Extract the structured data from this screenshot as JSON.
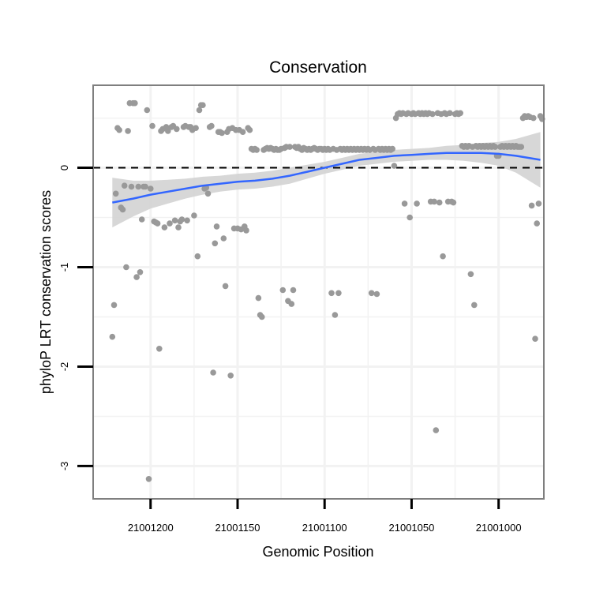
{
  "chart_data": {
    "type": "scatter",
    "title": "Conservation",
    "xlabel": "Genomic Position",
    "ylabel": "phyloP LRT conservation scores",
    "x_reversed": true,
    "xlim": [
      21000974,
      21001233
    ],
    "ylim": [
      -3.33,
      0.83
    ],
    "x_ticks": [
      21001200,
      21001150,
      21001100,
      21001050,
      21001000
    ],
    "x_tick_labels": [
      "21001200",
      "21001150",
      "21001100",
      "21001050",
      "21001000"
    ],
    "x_minor_gridlines": [
      21001175,
      21001125,
      21001075,
      21001025
    ],
    "y_ticks": [
      0,
      -1,
      -2,
      -3
    ],
    "y_tick_labels": [
      "0",
      "-1",
      "-2",
      "-3"
    ],
    "y_minor_gridlines": [
      0.5,
      -0.5,
      -1.5,
      -2.5
    ],
    "reference_line": {
      "y": 0,
      "style": "dashed"
    },
    "colors": {
      "points": "#999999",
      "smooth_line": "#3366ff",
      "confidence_band": "#d3d3d3",
      "panel_border": "#7f7f7f",
      "grid": "#f2f2f2"
    },
    "points": [
      [
        21001222,
        -1.7
      ],
      [
        21001221,
        -1.38
      ],
      [
        21001220,
        -0.26
      ],
      [
        21001219,
        0.4
      ],
      [
        21001218,
        0.38
      ],
      [
        21001217,
        -0.4
      ],
      [
        21001216,
        -0.42
      ],
      [
        21001215,
        -0.18
      ],
      [
        21001214,
        -1.0
      ],
      [
        21001213,
        0.37
      ],
      [
        21001212,
        0.65
      ],
      [
        21001211,
        -0.19
      ],
      [
        21001210,
        0.65
      ],
      [
        21001209,
        0.65
      ],
      [
        21001208,
        -1.1
      ],
      [
        21001207,
        -0.19
      ],
      [
        21001206,
        -1.05
      ],
      [
        21001205,
        -0.52
      ],
      [
        21001204,
        -0.19
      ],
      [
        21001203,
        -0.19
      ],
      [
        21001202,
        0.58
      ],
      [
        21001201,
        -3.13
      ],
      [
        21001200,
        -0.21
      ],
      [
        21001199,
        0.42
      ],
      [
        21001198,
        -0.54
      ],
      [
        21001197,
        -0.55
      ],
      [
        21001196,
        -0.56
      ],
      [
        21001195,
        -1.82
      ],
      [
        21001194,
        0.37
      ],
      [
        21001193,
        0.39
      ],
      [
        21001192,
        -0.6
      ],
      [
        21001191,
        0.41
      ],
      [
        21001190,
        0.37
      ],
      [
        21001189,
        -0.56
      ],
      [
        21001188,
        0.41
      ],
      [
        21001187,
        0.42
      ],
      [
        21001186,
        -0.53
      ],
      [
        21001185,
        0.39
      ],
      [
        21001184,
        -0.6
      ],
      [
        21001183,
        -0.54
      ],
      [
        21001182,
        -0.52
      ],
      [
        21001181,
        0.41
      ],
      [
        21001180,
        0.42
      ],
      [
        21001179,
        -0.53
      ],
      [
        21001178,
        0.41
      ],
      [
        21001177,
        0.41
      ],
      [
        21001176,
        0.38
      ],
      [
        21001175,
        -0.48
      ],
      [
        21001174,
        0.4
      ],
      [
        21001173,
        -0.89
      ],
      [
        21001172,
        0.58
      ],
      [
        21001171,
        0.63
      ],
      [
        21001170,
        0.63
      ],
      [
        21001169,
        -0.21
      ],
      [
        21001168,
        -0.2
      ],
      [
        21001167,
        -0.26
      ],
      [
        21001166,
        0.41
      ],
      [
        21001165,
        0.42
      ],
      [
        21001164,
        -2.06
      ],
      [
        21001163,
        -0.76
      ],
      [
        21001162,
        -0.59
      ],
      [
        21001161,
        0.36
      ],
      [
        21001160,
        0.36
      ],
      [
        21001159,
        0.35
      ],
      [
        21001158,
        -0.71
      ],
      [
        21001157,
        -1.19
      ],
      [
        21001156,
        0.36
      ],
      [
        21001155,
        0.39
      ],
      [
        21001154,
        -2.09
      ],
      [
        21001153,
        0.4
      ],
      [
        21001152,
        -0.61
      ],
      [
        21001151,
        0.38
      ],
      [
        21001150,
        -0.61
      ],
      [
        21001149,
        0.38
      ],
      [
        21001148,
        -0.62
      ],
      [
        21001147,
        0.36
      ],
      [
        21001146,
        -0.59
      ],
      [
        21001145,
        -0.63
      ],
      [
        21001144,
        0.4
      ],
      [
        21001143,
        0.38
      ],
      [
        21001142,
        0.19
      ],
      [
        21001141,
        0.18
      ],
      [
        21001140,
        0.19
      ],
      [
        21001139,
        0.18
      ],
      [
        21001138,
        -1.31
      ],
      [
        21001137,
        -1.48
      ],
      [
        21001136,
        -1.5
      ],
      [
        21001135,
        0.18
      ],
      [
        21001134,
        0.19
      ],
      [
        21001133,
        0.2
      ],
      [
        21001132,
        0.19
      ],
      [
        21001131,
        0.2
      ],
      [
        21001130,
        0.19
      ],
      [
        21001129,
        0.18
      ],
      [
        21001128,
        0.19
      ],
      [
        21001127,
        0.18
      ],
      [
        21001126,
        0.18
      ],
      [
        21001125,
        0.19
      ],
      [
        21001124,
        -1.23
      ],
      [
        21001123,
        0.2
      ],
      [
        21001122,
        0.21
      ],
      [
        21001121,
        -1.34
      ],
      [
        21001120,
        0.21
      ],
      [
        21001119,
        -1.37
      ],
      [
        21001118,
        -1.23
      ],
      [
        21001117,
        0.21
      ],
      [
        21001116,
        0.2
      ],
      [
        21001115,
        0.21
      ],
      [
        21001114,
        0.19
      ],
      [
        21001113,
        0.18
      ],
      [
        21001112,
        0.2
      ],
      [
        21001111,
        0.19
      ],
      [
        21001110,
        0.18
      ],
      [
        21001109,
        0.19
      ],
      [
        21001108,
        0.18
      ],
      [
        21001107,
        0.19
      ],
      [
        21001106,
        0.2
      ],
      [
        21001105,
        0.19
      ],
      [
        21001104,
        0.18
      ],
      [
        21001103,
        0.19
      ],
      [
        21001102,
        0.19
      ],
      [
        21001101,
        0.18
      ],
      [
        21001100,
        0.19
      ],
      [
        21001099,
        0.18
      ],
      [
        21001098,
        0.19
      ],
      [
        21001097,
        0.18
      ],
      [
        21001096,
        -1.26
      ],
      [
        21001095,
        0.19
      ],
      [
        21001094,
        -1.48
      ],
      [
        21001093,
        0.18
      ],
      [
        21001092,
        -1.26
      ],
      [
        21001091,
        0.19
      ],
      [
        21001090,
        0.18
      ],
      [
        21001089,
        0.19
      ],
      [
        21001088,
        0.18
      ],
      [
        21001087,
        0.19
      ],
      [
        21001086,
        0.18
      ],
      [
        21001085,
        0.19
      ],
      [
        21001084,
        0.18
      ],
      [
        21001083,
        0.19
      ],
      [
        21001082,
        0.18
      ],
      [
        21001081,
        0.19
      ],
      [
        21001080,
        0.18
      ],
      [
        21001079,
        0.19
      ],
      [
        21001078,
        0.18
      ],
      [
        21001077,
        0.19
      ],
      [
        21001076,
        0.18
      ],
      [
        21001075,
        0.19
      ],
      [
        21001074,
        0.18
      ],
      [
        21001073,
        -1.26
      ],
      [
        21001072,
        0.19
      ],
      [
        21001071,
        0.18
      ],
      [
        21001070,
        -1.27
      ],
      [
        21001069,
        0.19
      ],
      [
        21001068,
        0.18
      ],
      [
        21001067,
        0.19
      ],
      [
        21001066,
        0.18
      ],
      [
        21001065,
        0.19
      ],
      [
        21001064,
        0.18
      ],
      [
        21001063,
        0.19
      ],
      [
        21001062,
        0.18
      ],
      [
        21001061,
        0.19
      ],
      [
        21001060,
        0.02
      ],
      [
        21001059,
        0.5
      ],
      [
        21001058,
        0.54
      ],
      [
        21001057,
        0.55
      ],
      [
        21001056,
        0.54
      ],
      [
        21001055,
        0.55
      ],
      [
        21001054,
        -0.36
      ],
      [
        21001053,
        0.54
      ],
      [
        21001052,
        0.55
      ],
      [
        21001051,
        -0.5
      ],
      [
        21001050,
        0.54
      ],
      [
        21001049,
        0.55
      ],
      [
        21001048,
        0.54
      ],
      [
        21001047,
        -0.36
      ],
      [
        21001046,
        0.55
      ],
      [
        21001045,
        0.54
      ],
      [
        21001044,
        0.55
      ],
      [
        21001043,
        0.54
      ],
      [
        21001042,
        0.55
      ],
      [
        21001041,
        0.54
      ],
      [
        21001040,
        0.55
      ],
      [
        21001039,
        -0.34
      ],
      [
        21001038,
        0.54
      ],
      [
        21001037,
        -0.34
      ],
      [
        21001036,
        -2.64
      ],
      [
        21001035,
        0.55
      ],
      [
        21001034,
        -0.35
      ],
      [
        21001033,
        0.54
      ],
      [
        21001032,
        -0.89
      ],
      [
        21001031,
        0.55
      ],
      [
        21001030,
        0.54
      ],
      [
        21001029,
        -0.34
      ],
      [
        21001028,
        0.55
      ],
      [
        21001027,
        -0.34
      ],
      [
        21001026,
        -0.35
      ],
      [
        21001025,
        0.54
      ],
      [
        21001024,
        0.55
      ],
      [
        21001023,
        0.54
      ],
      [
        21001022,
        0.55
      ],
      [
        21001021,
        0.22
      ],
      [
        21001020,
        0.21
      ],
      [
        21001019,
        0.22
      ],
      [
        21001018,
        0.21
      ],
      [
        21001017,
        0.22
      ],
      [
        21001016,
        -1.07
      ],
      [
        21001015,
        0.21
      ],
      [
        21001014,
        -1.38
      ],
      [
        21001013,
        0.22
      ],
      [
        21001012,
        0.21
      ],
      [
        21001011,
        0.22
      ],
      [
        21001010,
        0.21
      ],
      [
        21001009,
        0.22
      ],
      [
        21001008,
        0.21
      ],
      [
        21001007,
        0.22
      ],
      [
        21001006,
        0.21
      ],
      [
        21001005,
        0.22
      ],
      [
        21001004,
        0.21
      ],
      [
        21001003,
        0.22
      ],
      [
        21001002,
        0.21
      ],
      [
        21001001,
        0.12
      ],
      [
        21001000,
        0.12
      ],
      [
        21000999,
        0.21
      ],
      [
        21000998,
        0.22
      ],
      [
        21000997,
        0.21
      ],
      [
        21000996,
        0.22
      ],
      [
        21000995,
        0.21
      ],
      [
        21000994,
        0.22
      ],
      [
        21000993,
        0.21
      ],
      [
        21000992,
        0.22
      ],
      [
        21000991,
        0.21
      ],
      [
        21000990,
        0.22
      ],
      [
        21000989,
        0.21
      ],
      [
        21000988,
        0.21
      ],
      [
        21000987,
        0.21
      ],
      [
        21000986,
        0.5
      ],
      [
        21000985,
        0.52
      ],
      [
        21000984,
        0.51
      ],
      [
        21000983,
        0.52
      ],
      [
        21000982,
        0.51
      ],
      [
        21000981,
        -0.38
      ],
      [
        21000980,
        0.5
      ],
      [
        21000979,
        -1.72
      ],
      [
        21000978,
        -0.56
      ],
      [
        21000977,
        -0.36
      ],
      [
        21000976,
        0.52
      ],
      [
        21000975,
        0.49
      ]
    ],
    "smooth": {
      "x": [
        21001222,
        21001210,
        21001200,
        21001190,
        21001180,
        21001170,
        21001160,
        21001150,
        21001140,
        21001130,
        21001120,
        21001110,
        21001100,
        21001090,
        21001080,
        21001070,
        21001060,
        21001050,
        21001040,
        21001030,
        21001020,
        21001010,
        21001000,
        21000990,
        21000976
      ],
      "y": [
        -0.35,
        -0.31,
        -0.27,
        -0.24,
        -0.21,
        -0.18,
        -0.16,
        -0.14,
        -0.13,
        -0.11,
        -0.08,
        -0.04,
        0.0,
        0.04,
        0.08,
        0.1,
        0.12,
        0.13,
        0.14,
        0.15,
        0.15,
        0.15,
        0.14,
        0.12,
        0.08
      ],
      "lower": [
        -0.6,
        -0.49,
        -0.41,
        -0.36,
        -0.31,
        -0.27,
        -0.24,
        -0.22,
        -0.21,
        -0.19,
        -0.16,
        -0.11,
        -0.06,
        -0.02,
        0.02,
        0.04,
        0.06,
        0.07,
        0.08,
        0.08,
        0.07,
        0.05,
        0.02,
        -0.05,
        -0.2
      ],
      "upper": [
        -0.1,
        -0.13,
        -0.13,
        -0.12,
        -0.11,
        -0.09,
        -0.08,
        -0.06,
        -0.05,
        -0.03,
        0.0,
        0.03,
        0.06,
        0.1,
        0.14,
        0.16,
        0.18,
        0.19,
        0.2,
        0.22,
        0.23,
        0.25,
        0.26,
        0.29,
        0.36
      ]
    }
  }
}
